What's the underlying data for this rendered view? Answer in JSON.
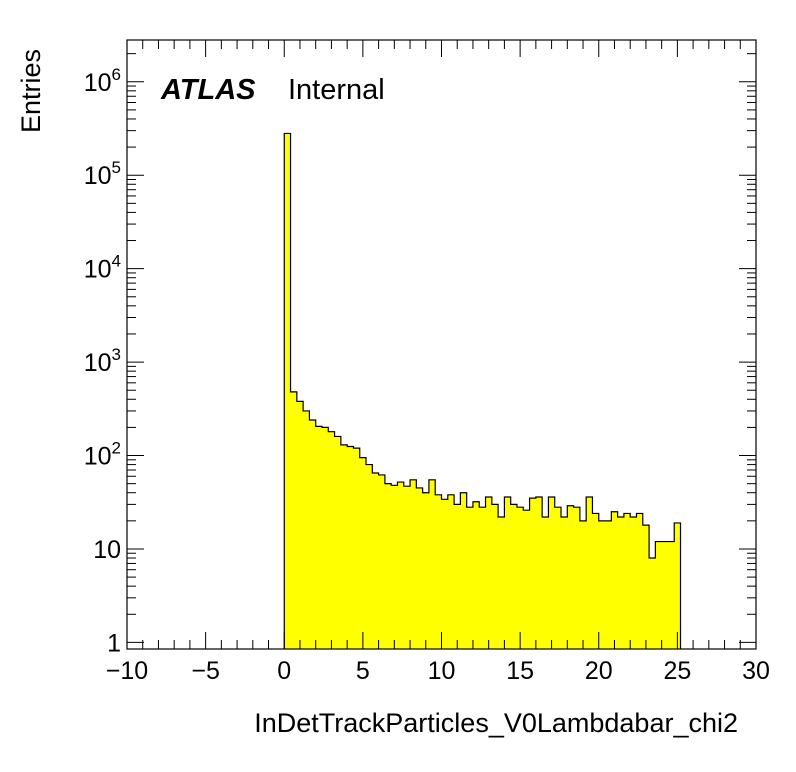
{
  "chart_data": {
    "type": "histogram",
    "title": "",
    "xlabel": "InDetTrackParticles_V0Lambdabar_chi2",
    "ylabel": "Entries",
    "xlim": [
      -10,
      30
    ],
    "ylim": [
      0.85,
      2800000
    ],
    "yscale": "log",
    "grid": false,
    "legend": "none",
    "fill_color": "#ffff00",
    "line_color": "#000000",
    "annotation": {
      "experiment": "ATLAS",
      "status": "Internal"
    },
    "x_ticks": [
      {
        "v": -10,
        "label": "−10"
      },
      {
        "v": -5,
        "label": "−5"
      },
      {
        "v": 0,
        "label": "0"
      },
      {
        "v": 5,
        "label": "5"
      },
      {
        "v": 10,
        "label": "10"
      },
      {
        "v": 15,
        "label": "15"
      },
      {
        "v": 20,
        "label": "20"
      },
      {
        "v": 25,
        "label": "25"
      },
      {
        "v": 30,
        "label": "30"
      }
    ],
    "y_ticks": [
      {
        "v": 1,
        "base": "1",
        "exp": ""
      },
      {
        "v": 10,
        "base": "10",
        "exp": ""
      },
      {
        "v": 100,
        "base": "10",
        "exp": "2"
      },
      {
        "v": 1000,
        "base": "10",
        "exp": "3"
      },
      {
        "v": 10000,
        "base": "10",
        "exp": "4"
      },
      {
        "v": 100000,
        "base": "10",
        "exp": "5"
      },
      {
        "v": 1000000,
        "base": "10",
        "exp": "6"
      }
    ],
    "bin_width": 0.4,
    "bin_start": 0,
    "values": [
      280000,
      480,
      380,
      300,
      240,
      205,
      200,
      180,
      160,
      130,
      125,
      120,
      95,
      80,
      65,
      62,
      50,
      48,
      52,
      47,
      55,
      45,
      40,
      55,
      38,
      34,
      38,
      30,
      40,
      28,
      32,
      28,
      36,
      30,
      22,
      36,
      30,
      28,
      26,
      35,
      36,
      22,
      36,
      28,
      22,
      29,
      28,
      20,
      36,
      24,
      20,
      20,
      25,
      22,
      24,
      22,
      24,
      18,
      8,
      12,
      12,
      12,
      19
    ]
  }
}
